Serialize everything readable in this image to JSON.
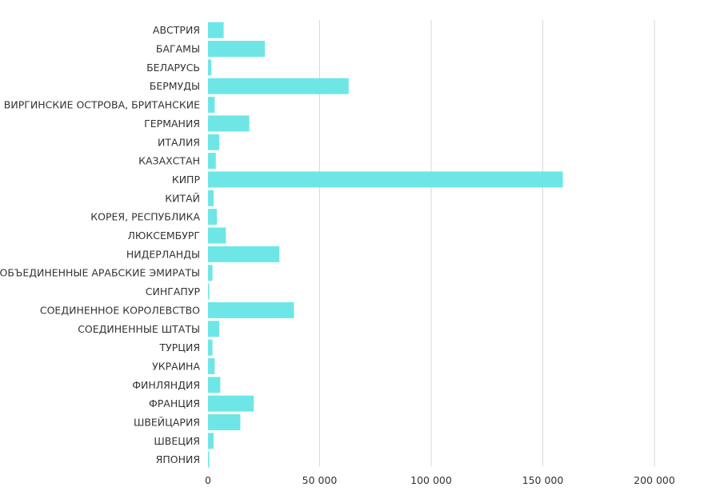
{
  "chart_data": {
    "type": "bar",
    "orientation": "horizontal",
    "title": "",
    "xlabel": "",
    "ylabel": "",
    "xlim": [
      0,
      200000
    ],
    "ticks": [
      0,
      50000,
      100000,
      150000,
      200000
    ],
    "tick_labels": [
      "0",
      "50 000",
      "100 000",
      "150 000",
      "200 000"
    ],
    "grid": "vertical",
    "legend": "none",
    "colors": {
      "bar": "#6ee6e6",
      "grid": "#d9d9d9",
      "text": "#333333"
    },
    "categories": [
      "АВСТРИЯ",
      "БАГАМЫ",
      "БЕЛАРУСЬ",
      "БЕРМУДЫ",
      "ВИРГИНСКИЕ ОСТРОВА, БРИТАНСКИЕ",
      "ГЕРМАНИЯ",
      "ИТАЛИЯ",
      "КАЗАХСТАН",
      "КИПР",
      "КИТАЙ",
      "КОРЕЯ, РЕСПУБЛИКА",
      "ЛЮКСЕМБУРГ",
      "НИДЕРЛАНДЫ",
      "ОБЪЕДИНЕННЫЕ АРАБСКИЕ ЭМИРАТЫ",
      "СИНГАПУР",
      "СОЕДИНЕННОЕ КОРОЛЕВСТВО",
      "СОЕДИНЕННЫЕ ШТАТЫ",
      "ТУРЦИЯ",
      "УКРАИНА",
      "ФИНЛЯНДИЯ",
      "ФРАНЦИЯ",
      "ШВЕЙЦАРИЯ",
      "ШВЕЦИЯ",
      "ЯПОНИЯ"
    ],
    "values": [
      7000,
      25500,
      1500,
      63000,
      3000,
      18500,
      5000,
      3500,
      159000,
      2500,
      4000,
      8000,
      32000,
      2000,
      500,
      38500,
      5000,
      2000,
      3000,
      5500,
      20500,
      14500,
      2500,
      500
    ]
  }
}
